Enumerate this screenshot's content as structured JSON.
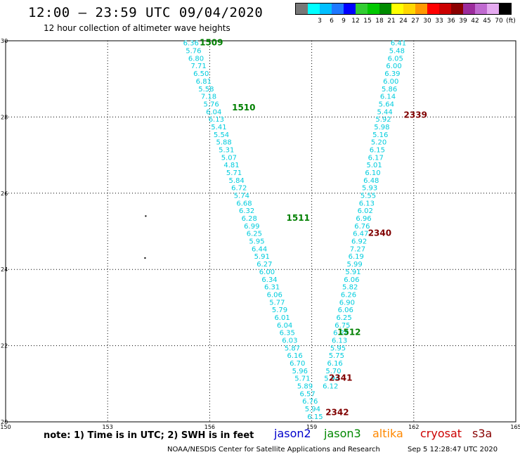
{
  "header": {
    "title": "12:00 – 23:59 UTC 09/04/2020",
    "subtitle": "12 hour collection of altimeter wave heights"
  },
  "legend": {
    "swatches": [
      {
        "color": "#777777",
        "label": ""
      },
      {
        "color": "#00ffff",
        "label": "3"
      },
      {
        "color": "#00bfff",
        "label": "6"
      },
      {
        "color": "#1e78ff",
        "label": "9"
      },
      {
        "color": "#0000ff",
        "label": "12"
      },
      {
        "color": "#32cd32",
        "label": "15"
      },
      {
        "color": "#00c800",
        "label": "18"
      },
      {
        "color": "#008c00",
        "label": "21"
      },
      {
        "color": "#ffff00",
        "label": "24"
      },
      {
        "color": "#ffd700",
        "label": "27"
      },
      {
        "color": "#ff9900",
        "label": "30"
      },
      {
        "color": "#ff0000",
        "label": "33"
      },
      {
        "color": "#cc0000",
        "label": "36"
      },
      {
        "color": "#8b0000",
        "label": "39"
      },
      {
        "color": "#9c2c9c",
        "label": "42"
      },
      {
        "color": "#c06ad0",
        "label": "45"
      },
      {
        "color": "#e5aaf0",
        "label": "70"
      },
      {
        "color": "#000000",
        "label": "(ft)"
      }
    ]
  },
  "map": {
    "lon_range": [
      150,
      165
    ],
    "lat_range": [
      20,
      30
    ],
    "x_ticks": [
      "150",
      "153",
      "156",
      "159",
      "162",
      "165"
    ],
    "y_ticks": [
      "20",
      "22",
      "24",
      "26",
      "28",
      "30"
    ],
    "wave_color": "#00ccdd",
    "track_a": [
      {
        "lat": 29.95,
        "v": "6.36"
      },
      {
        "lat": 29.75,
        "v": "5.76"
      },
      {
        "lat": 29.55,
        "v": "6.80"
      },
      {
        "lat": 29.35,
        "v": "7.71"
      },
      {
        "lat": 29.15,
        "v": "6.50"
      },
      {
        "lat": 28.95,
        "v": "6.81"
      },
      {
        "lat": 28.75,
        "v": "5.58"
      },
      {
        "lat": 28.55,
        "v": "7.18"
      },
      {
        "lat": 28.35,
        "v": "5.76"
      },
      {
        "lat": 28.15,
        "v": "6.04"
      },
      {
        "lat": 27.95,
        "v": "6.13"
      },
      {
        "lat": 27.75,
        "v": "5.41"
      },
      {
        "lat": 27.55,
        "v": "5.54"
      },
      {
        "lat": 27.35,
        "v": "5.88"
      },
      {
        "lat": 27.15,
        "v": "5.31"
      },
      {
        "lat": 26.95,
        "v": "5.07"
      },
      {
        "lat": 26.75,
        "v": "4.81"
      },
      {
        "lat": 26.55,
        "v": "5.71"
      },
      {
        "lat": 26.35,
        "v": "5.84"
      },
      {
        "lat": 26.15,
        "v": "6.72"
      },
      {
        "lat": 25.95,
        "v": "5.74"
      },
      {
        "lat": 25.75,
        "v": "6.68"
      },
      {
        "lat": 25.55,
        "v": "6.32"
      },
      {
        "lat": 25.35,
        "v": "6.28"
      },
      {
        "lat": 25.15,
        "v": "6.99"
      },
      {
        "lat": 24.95,
        "v": "6.25"
      },
      {
        "lat": 24.75,
        "v": "5.95"
      },
      {
        "lat": 24.55,
        "v": "6.44"
      },
      {
        "lat": 24.35,
        "v": "5.91"
      },
      {
        "lat": 24.15,
        "v": "6.27"
      },
      {
        "lat": 23.95,
        "v": "6.00"
      },
      {
        "lat": 23.75,
        "v": "6.34"
      },
      {
        "lat": 23.55,
        "v": "6.31"
      },
      {
        "lat": 23.35,
        "v": "6.06"
      },
      {
        "lat": 23.15,
        "v": "5.77"
      },
      {
        "lat": 22.95,
        "v": "5.79"
      },
      {
        "lat": 22.75,
        "v": "6.01"
      },
      {
        "lat": 22.55,
        "v": "6.04"
      },
      {
        "lat": 22.35,
        "v": "6.35"
      },
      {
        "lat": 22.15,
        "v": "6.03"
      },
      {
        "lat": 21.95,
        "v": "5.87"
      },
      {
        "lat": 21.75,
        "v": "6.16"
      },
      {
        "lat": 21.55,
        "v": "6.70"
      },
      {
        "lat": 21.35,
        "v": "5.96"
      },
      {
        "lat": 21.15,
        "v": "5.71"
      },
      {
        "lat": 20.95,
        "v": "5.89"
      },
      {
        "lat": 20.75,
        "v": "6.57"
      },
      {
        "lat": 20.55,
        "v": "6.76"
      },
      {
        "lat": 20.35,
        "v": "5.94"
      },
      {
        "lat": 20.15,
        "v": "6.15"
      }
    ],
    "track_b": [
      {
        "lat": 29.95,
        "v": "6.41"
      },
      {
        "lat": 29.75,
        "v": "5.48"
      },
      {
        "lat": 29.55,
        "v": "6.05"
      },
      {
        "lat": 29.35,
        "v": "6.00"
      },
      {
        "lat": 29.15,
        "v": "6.39"
      },
      {
        "lat": 28.95,
        "v": "6.00"
      },
      {
        "lat": 28.75,
        "v": "5.86"
      },
      {
        "lat": 28.55,
        "v": "6.14"
      },
      {
        "lat": 28.35,
        "v": "5.64"
      },
      {
        "lat": 28.15,
        "v": "5.44"
      },
      {
        "lat": 27.95,
        "v": "5.92"
      },
      {
        "lat": 27.75,
        "v": "5.98"
      },
      {
        "lat": 27.55,
        "v": "5.16"
      },
      {
        "lat": 27.35,
        "v": "5.20"
      },
      {
        "lat": 27.15,
        "v": "6.15"
      },
      {
        "lat": 26.95,
        "v": "6.17"
      },
      {
        "lat": 26.75,
        "v": "5.01"
      },
      {
        "lat": 26.55,
        "v": "6.10"
      },
      {
        "lat": 26.35,
        "v": "6.48"
      },
      {
        "lat": 26.15,
        "v": "5.93"
      },
      {
        "lat": 25.95,
        "v": "5.55"
      },
      {
        "lat": 25.75,
        "v": "6.13"
      },
      {
        "lat": 25.55,
        "v": "6.02"
      },
      {
        "lat": 25.35,
        "v": "6.96"
      },
      {
        "lat": 25.15,
        "v": "6.76"
      },
      {
        "lat": 24.95,
        "v": "6.47"
      },
      {
        "lat": 24.75,
        "v": "6.92"
      },
      {
        "lat": 24.55,
        "v": "7.27"
      },
      {
        "lat": 24.35,
        "v": "6.19"
      },
      {
        "lat": 24.15,
        "v": "5.99"
      },
      {
        "lat": 23.95,
        "v": "5.91"
      },
      {
        "lat": 23.75,
        "v": "6.06"
      },
      {
        "lat": 23.55,
        "v": "5.82"
      },
      {
        "lat": 23.35,
        "v": "6.26"
      },
      {
        "lat": 23.15,
        "v": "6.90"
      },
      {
        "lat": 22.95,
        "v": "6.06"
      },
      {
        "lat": 22.75,
        "v": "6.25"
      },
      {
        "lat": 22.55,
        "v": "6.75"
      },
      {
        "lat": 22.35,
        "v": "6.28"
      },
      {
        "lat": 22.15,
        "v": "6.13"
      },
      {
        "lat": 21.95,
        "v": "5.95"
      },
      {
        "lat": 21.75,
        "v": "5.75"
      },
      {
        "lat": 21.55,
        "v": "6.16"
      },
      {
        "lat": 21.35,
        "v": "5.70"
      },
      {
        "lat": 21.15,
        "v": "5.94"
      },
      {
        "lat": 20.95,
        "v": "6.12"
      }
    ],
    "time_labels": [
      {
        "text": "1509",
        "lon": 156.05,
        "lat": 29.95,
        "color": "#008000"
      },
      {
        "text": "1510",
        "lon": 157.0,
        "lat": 28.25,
        "color": "#008000"
      },
      {
        "text": "1511",
        "lon": 158.6,
        "lat": 25.35,
        "color": "#008000"
      },
      {
        "text": "1512",
        "lon": 160.1,
        "lat": 22.35,
        "color": "#008000"
      },
      {
        "text": "2339",
        "lon": 162.05,
        "lat": 28.05,
        "color": "#800000"
      },
      {
        "text": "2340",
        "lon": 161.0,
        "lat": 24.95,
        "color": "#800000"
      },
      {
        "text": "2341",
        "lon": 159.85,
        "lat": 21.15,
        "color": "#800000"
      },
      {
        "text": "2342",
        "lon": 159.75,
        "lat": 20.25,
        "color": "#800000"
      }
    ],
    "island_dots": [
      {
        "lon": 154.12,
        "lat": 25.4
      },
      {
        "lon": 154.1,
        "lat": 24.3
      }
    ]
  },
  "footer": {
    "note": "note:  1) Time is in UTC;  2) SWH is in feet",
    "satellites": [
      {
        "name": "jason2",
        "color": "#0000cc"
      },
      {
        "name": "jason3",
        "color": "#008800"
      },
      {
        "name": "altika",
        "color": "#ff8800"
      },
      {
        "name": "cryosat",
        "color": "#cc0000"
      },
      {
        "name": "s3a",
        "color": "#880000"
      }
    ],
    "credit": "NOAA/NESDIS Center for Satellite Applications and Research",
    "timestamp": "Sep  5 12:28:47 UTC 2020"
  }
}
